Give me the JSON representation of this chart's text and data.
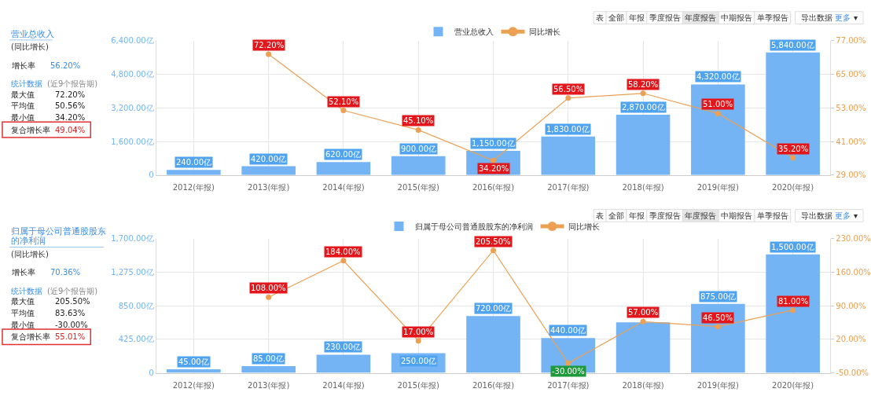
{
  "chart_data": [
    {
      "type": "other",
      "title": "营业总收入",
      "subtitle": "(同比增长)",
      "annotations": [
        "增长率",
        "56.20%",
        "统计数据",
        "(近9个报告期)",
        "最大值",
        "72.20%",
        "平均值",
        "50.56%",
        "最小值",
        "34.20%",
        "复合增长率",
        "49.04%"
      ]
    },
    {
      "type": "bar",
      "annotations": [
        "表",
        "全部",
        "年报",
        "季度报告",
        "年度报告",
        "中期报告",
        "单季报告",
        "导出数据",
        "更多",
        "▾"
      ],
      "categories": [
        "2012(年报)",
        "2013(年报)",
        "2014(年报)",
        "2015(年报)",
        "2016(年报)",
        "2017(年报)",
        "2018(年报)",
        "2019(年报)",
        "2020(年报)"
      ],
      "series": [
        {
          "name": "营业总收入",
          "type": "bar",
          "color": "#74b4f4",
          "values": [
            240,
            420,
            620,
            900,
            1150,
            1830,
            2870,
            4320,
            5840
          ],
          "value_labels": [
            "240.00亿",
            "420.00亿",
            "620.00亿",
            "900.00亿",
            "1,150.00亿",
            "1,830.00亿",
            "2,870.00亿",
            "4,320.00亿",
            "5,840.00亿"
          ]
        },
        {
          "name": "同比增长",
          "type": "line",
          "axis": "y2",
          "color": "#eca053",
          "values": [
            null,
            72.2,
            52.1,
            45.1,
            34.2,
            56.5,
            58.2,
            51.0,
            35.2
          ],
          "value_labels": [
            null,
            "72.20%",
            "52.10%",
            "45.10%",
            "34.20%",
            "56.50%",
            "58.20%",
            "51.00%",
            "35.20%"
          ]
        }
      ],
      "ylim": [
        0,
        6400
      ],
      "yticks": [
        0,
        {
          "value": 1600,
          "label": "1,600.00亿"
        },
        {
          "value": 3200,
          "label": "3,200.00亿"
        },
        {
          "value": 4800,
          "label": "4,800.00亿"
        },
        {
          "value": 6400,
          "label": "6,400.00亿"
        }
      ],
      "y2lim": [
        29,
        77
      ],
      "y2ticks": [
        {
          "value": 29,
          "label": "29.00%"
        },
        {
          "value": 41,
          "label": "41.00%"
        },
        {
          "value": 53,
          "label": "53.00%"
        },
        {
          "value": 65,
          "label": "65.00%"
        },
        {
          "value": 77,
          "label": "77.00%"
        }
      ],
      "grid": true,
      "legend": "top",
      "marker": "circle",
      "line_style": "solid"
    },
    {
      "type": "other",
      "title": "归属于母公司普通股股东的净利润",
      "subtitle": "(同比增长)",
      "annotations": [
        "增长率",
        "70.36%",
        "统计数据",
        "(近9个报告期)",
        "最大值",
        "205.50%",
        "平均值",
        "83.63%",
        "最小值",
        "-30.00%",
        "复合增长率",
        "55.01%"
      ]
    },
    {
      "type": "bar",
      "annotations": [
        "表",
        "全部",
        "年报",
        "季度报告",
        "年度报告",
        "中期报告",
        "单季报告",
        "导出数据",
        "更多",
        "▾"
      ],
      "categories": [
        "2012(年报)",
        "2013(年报)",
        "2014(年报)",
        "2015(年报)",
        "2016(年报)",
        "2017(年报)",
        "2018(年报)",
        "2019(年报)",
        "2020(年报)"
      ],
      "series": [
        {
          "name": "归属于母公司普通股股东的净利润",
          "type": "bar",
          "color": "#74b4f4",
          "values": [
            45,
            85,
            230,
            250,
            720,
            440,
            640,
            875,
            1500
          ],
          "value_labels": [
            "45.00亿",
            "85.00亿",
            "230.00亿",
            "250.00亿",
            "720.00亿",
            "440.00亿",
            null,
            "875.00亿",
            "1,500.00亿"
          ]
        },
        {
          "name": "同比增长",
          "type": "line",
          "axis": "y2",
          "color": "#eca053",
          "values": [
            null,
            108,
            184,
            17,
            205.5,
            -30,
            57,
            46.5,
            81
          ],
          "value_labels": [
            null,
            "108.00%",
            "184.00%",
            "17.00%",
            "205.50%",
            "-30.00%",
            "57.00%",
            "46.50%",
            "81.00%"
          ]
        }
      ],
      "ylim": [
        0,
        1700
      ],
      "yticks": [
        0,
        {
          "value": 425,
          "label": "425.00亿"
        },
        {
          "value": 850,
          "label": "850.00亿"
        },
        {
          "value": 1275,
          "label": "1,275.00亿"
        },
        {
          "value": 1700,
          "label": "1,700.00亿"
        }
      ],
      "y2lim": [
        -50,
        230
      ],
      "y2ticks": [
        {
          "value": -50,
          "label": "-50.00%"
        },
        {
          "value": 20,
          "label": "20.00%"
        },
        {
          "value": 90,
          "label": "90.00%"
        },
        {
          "value": 160,
          "label": "160.00%"
        },
        {
          "value": 230,
          "label": "230.00%"
        }
      ],
      "grid": true,
      "legend": "top",
      "marker": "circle",
      "line_style": "solid"
    }
  ]
}
